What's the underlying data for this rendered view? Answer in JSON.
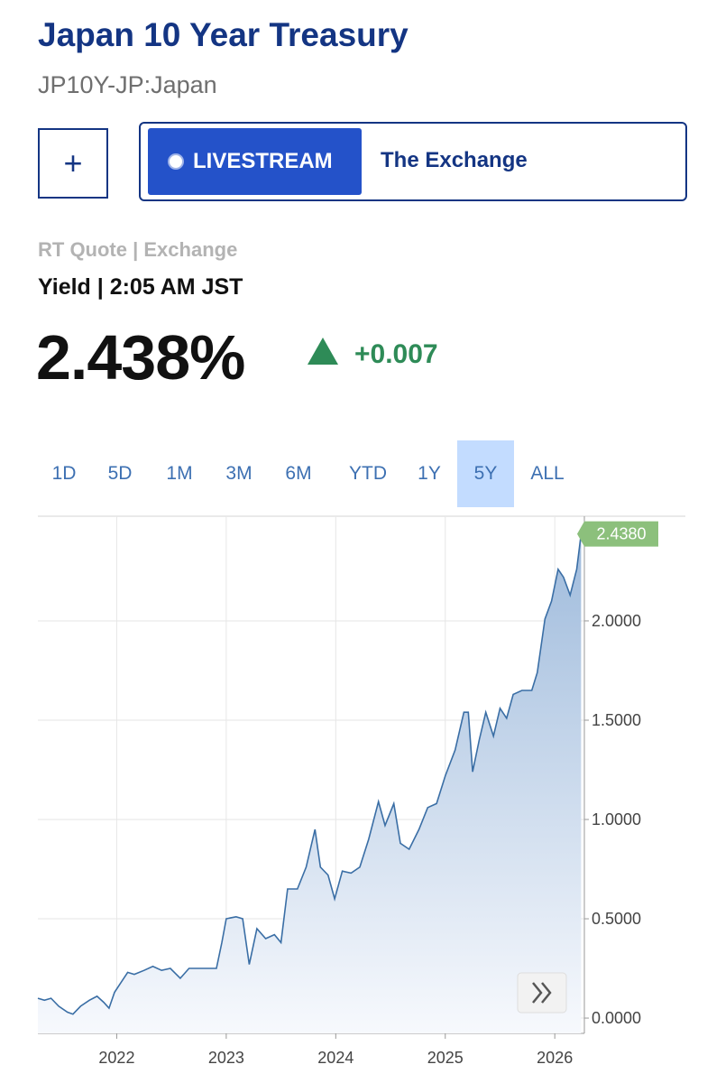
{
  "header": {
    "title": "Japan 10 Year Treasury",
    "subtitle": "JP10Y-JP:Japan"
  },
  "buttons": {
    "add": "+",
    "livestream": "LIVESTREAM",
    "channel": "The Exchange"
  },
  "quote": {
    "source": "RT Quote | Exchange",
    "label": "Yield | 2:05 AM JST",
    "value": "2.438%",
    "change": "+0.007"
  },
  "range_buttons": [
    "1D",
    "5D",
    "1M",
    "3M",
    "6M",
    "YTD",
    "1Y",
    "5Y",
    "ALL"
  ],
  "selected_range": 7,
  "chart_data": {
    "type": "area",
    "color": "#3a6ea5",
    "x": [
      2021.28,
      2021.34,
      2021.4,
      2021.47,
      2021.55,
      2021.6,
      2021.67,
      2021.75,
      2021.82,
      2021.88,
      2021.93,
      2021.98,
      2022.04,
      2022.1,
      2022.16,
      2022.25,
      2022.33,
      2022.41,
      2022.49,
      2022.58,
      2022.66,
      2022.78,
      2022.91,
      2022.96,
      2023.0,
      2023.09,
      2023.15,
      2023.21,
      2023.28,
      2023.36,
      2023.44,
      2023.5,
      2023.56,
      2023.65,
      2023.73,
      2023.81,
      2023.86,
      2023.93,
      2023.99,
      2024.06,
      2024.14,
      2024.22,
      2024.3,
      2024.39,
      2024.45,
      2024.53,
      2024.59,
      2024.67,
      2024.76,
      2024.84,
      2024.92,
      2025.0,
      2025.09,
      2025.17,
      2025.21,
      2025.25,
      2025.31,
      2025.37,
      2025.44,
      2025.5,
      2025.56,
      2025.62,
      2025.7,
      2025.79,
      2025.84,
      2025.91,
      2025.97,
      2026.03,
      2026.08,
      2026.14,
      2026.2,
      2026.24
    ],
    "values": [
      0.1,
      0.09,
      0.1,
      0.06,
      0.03,
      0.02,
      0.06,
      0.09,
      0.11,
      0.08,
      0.05,
      0.13,
      0.18,
      0.23,
      0.22,
      0.24,
      0.26,
      0.24,
      0.25,
      0.2,
      0.25,
      0.25,
      0.25,
      0.38,
      0.5,
      0.51,
      0.5,
      0.27,
      0.45,
      0.4,
      0.42,
      0.38,
      0.65,
      0.65,
      0.76,
      0.95,
      0.76,
      0.72,
      0.6,
      0.74,
      0.73,
      0.76,
      0.9,
      1.09,
      0.97,
      1.08,
      0.88,
      0.85,
      0.95,
      1.06,
      1.08,
      1.22,
      1.35,
      1.54,
      1.54,
      1.24,
      1.4,
      1.54,
      1.42,
      1.56,
      1.51,
      1.63,
      1.65,
      1.65,
      1.74,
      2.01,
      2.1,
      2.26,
      2.22,
      2.13,
      2.26,
      2.438
    ],
    "value_labels": [
      null,
      null,
      null,
      null,
      null,
      null,
      null,
      null,
      null,
      null,
      null,
      null,
      null,
      null,
      null,
      null,
      null,
      null,
      null,
      null,
      null,
      null,
      null,
      null,
      null,
      null,
      null,
      null,
      null,
      null,
      null,
      null,
      null,
      null,
      null,
      null,
      null,
      null,
      null,
      null,
      null,
      null,
      null,
      null,
      null,
      null,
      null,
      null,
      null,
      null,
      null,
      null,
      null,
      null,
      null,
      null,
      null,
      null,
      null,
      null,
      null,
      null,
      null,
      null,
      null,
      null,
      null,
      null,
      null,
      null,
      null,
      "2.4380"
    ],
    "xlim": [
      2021.28,
      2026.27
    ],
    "xticks": [
      2022,
      2023,
      2024,
      2025,
      2026
    ],
    "ylim": [
      -0.077,
      2.527
    ],
    "yticks": [
      {
        "value": 0,
        "label": "0.0000"
      },
      {
        "value": 0.5,
        "label": "0.5000"
      },
      {
        "value": 1,
        "label": "1.0000"
      },
      {
        "value": 1.5,
        "label": "1.5000"
      },
      {
        "value": 2,
        "label": "2.0000"
      }
    ],
    "grid": true
  }
}
